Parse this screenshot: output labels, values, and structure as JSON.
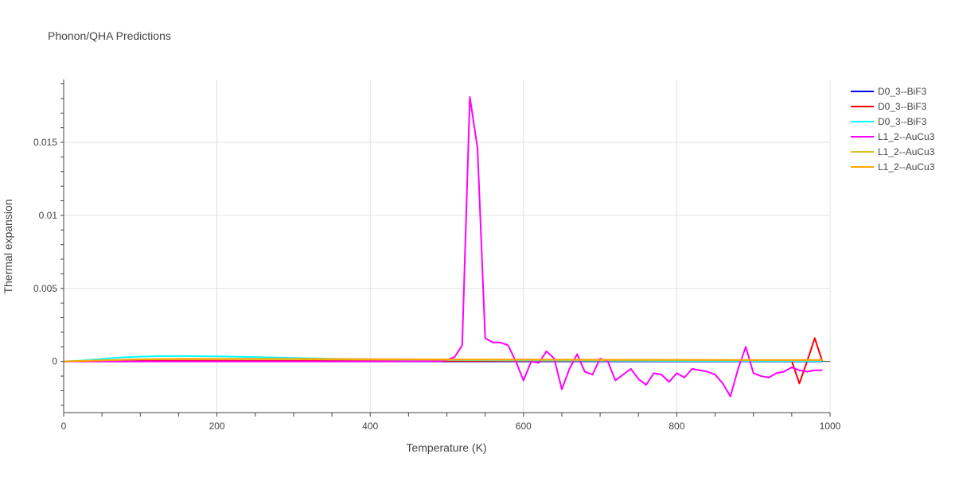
{
  "chart_data": {
    "type": "line",
    "title": "Phonon/QHA Predictions",
    "xlabel": "Temperature (K)",
    "ylabel": "Thermal expansion",
    "xlim": [
      0,
      1000
    ],
    "ylim": [
      -0.0035,
      0.0193
    ],
    "xticks": [
      0,
      200,
      400,
      600,
      800,
      1000
    ],
    "xtick_labels": [
      "0",
      "200",
      "400",
      "600",
      "800",
      "1000"
    ],
    "yticks": [
      0,
      0.005,
      0.01,
      0.015
    ],
    "ytick_labels": [
      "0",
      "0.005",
      "0.01",
      "0.015"
    ],
    "grid": true,
    "legend_position": "top-right",
    "series": [
      {
        "name": "D0_3--BiF3",
        "color": "#0000ff",
        "x": [
          0,
          100,
          200,
          300,
          400,
          500,
          600,
          700,
          800,
          900,
          990
        ],
        "y": [
          0,
          0,
          0,
          0,
          0,
          0,
          0,
          0,
          0,
          0,
          0
        ]
      },
      {
        "name": "D0_3--BiF3",
        "color": "#ff0000",
        "x": [
          0,
          100,
          200,
          300,
          400,
          500,
          600,
          700,
          800,
          900,
          950,
          960,
          970,
          980,
          990
        ],
        "y": [
          0,
          5e-05,
          5e-05,
          4e-05,
          3e-05,
          3e-05,
          3e-05,
          3e-05,
          3e-05,
          3e-05,
          3e-05,
          -0.0015,
          0.0,
          0.0016,
          0.0
        ]
      },
      {
        "name": "D0_3--BiF3",
        "color": "#00ffff",
        "x": [
          0,
          20,
          40,
          60,
          80,
          100,
          130,
          160,
          200,
          250,
          300,
          350,
          400,
          450,
          500,
          600,
          700,
          800,
          900,
          990
        ],
        "y": [
          0,
          5e-05,
          0.00013,
          0.00022,
          0.00029,
          0.00033,
          0.00037,
          0.00037,
          0.00035,
          0.0003,
          0.00024,
          0.00019,
          0.00015,
          0.00012,
          0.0001,
          7e-05,
          5e-05,
          4e-05,
          3e-05,
          3e-05
        ]
      },
      {
        "name": "L1_2--AuCu3",
        "color": "#ff00ff",
        "x": [
          0,
          100,
          200,
          300,
          400,
          490,
          500,
          510,
          520,
          530,
          540,
          550,
          560,
          570,
          580,
          590,
          600,
          610,
          620,
          630,
          640,
          650,
          660,
          670,
          680,
          690,
          700,
          710,
          720,
          730,
          740,
          750,
          760,
          770,
          780,
          790,
          800,
          810,
          820,
          830,
          840,
          850,
          860,
          870,
          880,
          890,
          900,
          910,
          920,
          930,
          940,
          950,
          960,
          970,
          980,
          990
        ],
        "y": [
          0,
          0,
          0,
          0,
          0,
          2e-05,
          0.0001,
          0.0003,
          0.0011,
          0.0181,
          0.0146,
          0.0016,
          0.0013,
          0.0013,
          0.0011,
          0.0,
          -0.0013,
          0.0,
          -0.0001,
          0.0007,
          0.0002,
          -0.0019,
          -0.0005,
          0.0005,
          -0.0007,
          -0.0009,
          0.0002,
          0.0,
          -0.0013,
          -0.0009,
          -0.0005,
          -0.0012,
          -0.0016,
          -0.0008,
          -0.0009,
          -0.0014,
          -0.0008,
          -0.0011,
          -0.0005,
          -0.0006,
          -0.0007,
          -0.0009,
          -0.0015,
          -0.0024,
          -0.0005,
          0.001,
          -0.0008,
          -0.001,
          -0.0011,
          -0.0008,
          -0.0007,
          -0.0004,
          -0.0006,
          -0.0007,
          -0.0006,
          -0.0006
        ]
      },
      {
        "name": "L1_2--AuCu3",
        "color": "#d4c41c",
        "x": [
          0,
          50,
          100,
          150,
          200,
          300,
          400,
          500,
          600,
          700,
          800,
          900,
          990
        ],
        "y": [
          0,
          8e-05,
          0.00014,
          0.00016,
          0.00016,
          0.00015,
          0.00013,
          0.00012,
          0.00011,
          0.0001,
          0.0001,
          0.0001,
          0.0001
        ]
      },
      {
        "name": "L1_2--AuCu3",
        "color": "#ffa500",
        "x": [
          0,
          50,
          100,
          150,
          200,
          300,
          400,
          500,
          600,
          700,
          800,
          900,
          990
        ],
        "y": [
          0,
          8e-05,
          0.00015,
          0.00018,
          0.00019,
          0.00018,
          0.00016,
          0.00014,
          0.00013,
          0.00012,
          0.00011,
          0.0001,
          0.0001
        ]
      }
    ]
  }
}
